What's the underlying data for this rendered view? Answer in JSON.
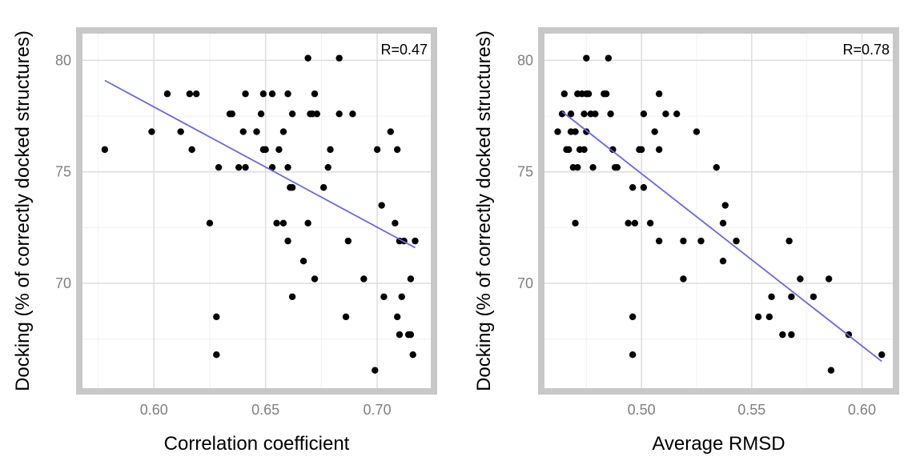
{
  "colors": {
    "frame": "#c8c8c8",
    "grid_major": "#dddddd",
    "grid_minor": "#f0f0f0",
    "points": "#000000",
    "fit_line": "#6666ee",
    "tick_text": "#7f7f7f"
  },
  "chart_data": [
    {
      "type": "scatter",
      "xlabel": "Correlation coefficient",
      "ylabel": "Docking (% of correctly docked structures)",
      "annotation": "R=0.47",
      "xlim": [
        0.568,
        0.724
      ],
      "ylim": [
        65.3,
        81.2
      ],
      "x_ticks": [
        0.6,
        0.65,
        0.7
      ],
      "x_tick_labels": [
        "0.60",
        "0.65",
        "0.70"
      ],
      "y_ticks": [
        70,
        75,
        80
      ],
      "y_tick_labels": [
        "70",
        "75",
        "80"
      ],
      "grid": true,
      "fit_line": {
        "x": [
          0.578,
          0.717
        ],
        "y": [
          79.1,
          71.6
        ]
      },
      "points": [
        {
          "x": 0.578,
          "y": 76.0
        },
        {
          "x": 0.599,
          "y": 76.8
        },
        {
          "x": 0.606,
          "y": 78.5
        },
        {
          "x": 0.612,
          "y": 76.8
        },
        {
          "x": 0.616,
          "y": 78.5
        },
        {
          "x": 0.617,
          "y": 76.0
        },
        {
          "x": 0.619,
          "y": 78.5
        },
        {
          "x": 0.625,
          "y": 72.7
        },
        {
          "x": 0.628,
          "y": 68.5
        },
        {
          "x": 0.628,
          "y": 66.8
        },
        {
          "x": 0.629,
          "y": 75.2
        },
        {
          "x": 0.634,
          "y": 77.6
        },
        {
          "x": 0.635,
          "y": 77.6
        },
        {
          "x": 0.638,
          "y": 75.2
        },
        {
          "x": 0.64,
          "y": 76.8
        },
        {
          "x": 0.641,
          "y": 78.5
        },
        {
          "x": 0.641,
          "y": 75.2
        },
        {
          "x": 0.646,
          "y": 76.8
        },
        {
          "x": 0.648,
          "y": 77.6
        },
        {
          "x": 0.649,
          "y": 76.0
        },
        {
          "x": 0.649,
          "y": 78.5
        },
        {
          "x": 0.65,
          "y": 76.0
        },
        {
          "x": 0.653,
          "y": 78.5
        },
        {
          "x": 0.653,
          "y": 75.2
        },
        {
          "x": 0.655,
          "y": 72.7
        },
        {
          "x": 0.656,
          "y": 76.0
        },
        {
          "x": 0.658,
          "y": 76.8
        },
        {
          "x": 0.658,
          "y": 72.7
        },
        {
          "x": 0.66,
          "y": 78.5
        },
        {
          "x": 0.66,
          "y": 75.2
        },
        {
          "x": 0.66,
          "y": 71.9
        },
        {
          "x": 0.661,
          "y": 74.3
        },
        {
          "x": 0.662,
          "y": 74.3
        },
        {
          "x": 0.662,
          "y": 77.6
        },
        {
          "x": 0.662,
          "y": 69.4
        },
        {
          "x": 0.667,
          "y": 71.0
        },
        {
          "x": 0.669,
          "y": 80.1
        },
        {
          "x": 0.669,
          "y": 72.7
        },
        {
          "x": 0.67,
          "y": 77.6
        },
        {
          "x": 0.671,
          "y": 77.6
        },
        {
          "x": 0.672,
          "y": 78.5
        },
        {
          "x": 0.672,
          "y": 70.2
        },
        {
          "x": 0.673,
          "y": 77.6
        },
        {
          "x": 0.676,
          "y": 74.3
        },
        {
          "x": 0.678,
          "y": 75.2
        },
        {
          "x": 0.679,
          "y": 76.0
        },
        {
          "x": 0.683,
          "y": 80.1
        },
        {
          "x": 0.683,
          "y": 77.6
        },
        {
          "x": 0.686,
          "y": 68.5
        },
        {
          "x": 0.687,
          "y": 71.9
        },
        {
          "x": 0.689,
          "y": 77.6
        },
        {
          "x": 0.694,
          "y": 70.2
        },
        {
          "x": 0.699,
          "y": 66.1
        },
        {
          "x": 0.7,
          "y": 76.0
        },
        {
          "x": 0.702,
          "y": 73.5
        },
        {
          "x": 0.703,
          "y": 69.4
        },
        {
          "x": 0.706,
          "y": 76.8
        },
        {
          "x": 0.708,
          "y": 72.7
        },
        {
          "x": 0.709,
          "y": 76.0
        },
        {
          "x": 0.709,
          "y": 68.5
        },
        {
          "x": 0.71,
          "y": 71.9
        },
        {
          "x": 0.71,
          "y": 67.7
        },
        {
          "x": 0.711,
          "y": 69.4
        },
        {
          "x": 0.712,
          "y": 71.9
        },
        {
          "x": 0.714,
          "y": 67.7
        },
        {
          "x": 0.715,
          "y": 70.2
        },
        {
          "x": 0.715,
          "y": 67.7
        },
        {
          "x": 0.716,
          "y": 66.8
        },
        {
          "x": 0.717,
          "y": 71.9
        }
      ]
    },
    {
      "type": "scatter",
      "xlabel": "Average RMSD",
      "ylabel": "Docking (% of correctly docked structures)",
      "annotation": "R=0.78",
      "xlim": [
        0.456,
        0.614
      ],
      "ylim": [
        65.3,
        81.2
      ],
      "x_ticks": [
        0.5,
        0.55,
        0.6
      ],
      "x_tick_labels": [
        "0.50",
        "0.55",
        "0.60"
      ],
      "y_ticks": [
        70,
        75,
        80
      ],
      "y_tick_labels": [
        "70",
        "75",
        "80"
      ],
      "grid": true,
      "fit_line": {
        "x": [
          0.464,
          0.609
        ],
        "y": [
          77.7,
          66.5
        ]
      },
      "points": [
        {
          "x": 0.462,
          "y": 76.8
        },
        {
          "x": 0.464,
          "y": 77.6
        },
        {
          "x": 0.465,
          "y": 78.5
        },
        {
          "x": 0.466,
          "y": 76.0
        },
        {
          "x": 0.467,
          "y": 76.0
        },
        {
          "x": 0.468,
          "y": 77.6
        },
        {
          "x": 0.468,
          "y": 76.8
        },
        {
          "x": 0.469,
          "y": 75.2
        },
        {
          "x": 0.47,
          "y": 72.7
        },
        {
          "x": 0.47,
          "y": 76.8
        },
        {
          "x": 0.471,
          "y": 75.2
        },
        {
          "x": 0.471,
          "y": 78.5
        },
        {
          "x": 0.472,
          "y": 76.0
        },
        {
          "x": 0.473,
          "y": 78.5
        },
        {
          "x": 0.474,
          "y": 77.6
        },
        {
          "x": 0.474,
          "y": 76.0
        },
        {
          "x": 0.475,
          "y": 80.1
        },
        {
          "x": 0.475,
          "y": 78.5
        },
        {
          "x": 0.475,
          "y": 76.8
        },
        {
          "x": 0.476,
          "y": 78.5
        },
        {
          "x": 0.477,
          "y": 77.6
        },
        {
          "x": 0.478,
          "y": 75.2
        },
        {
          "x": 0.479,
          "y": 77.6
        },
        {
          "x": 0.483,
          "y": 78.5
        },
        {
          "x": 0.484,
          "y": 78.5
        },
        {
          "x": 0.485,
          "y": 80.1
        },
        {
          "x": 0.486,
          "y": 77.6
        },
        {
          "x": 0.487,
          "y": 76.0
        },
        {
          "x": 0.488,
          "y": 75.2
        },
        {
          "x": 0.489,
          "y": 75.2
        },
        {
          "x": 0.494,
          "y": 72.7
        },
        {
          "x": 0.496,
          "y": 74.3
        },
        {
          "x": 0.496,
          "y": 68.5
        },
        {
          "x": 0.496,
          "y": 66.8
        },
        {
          "x": 0.497,
          "y": 72.7
        },
        {
          "x": 0.499,
          "y": 76.0
        },
        {
          "x": 0.5,
          "y": 76.0
        },
        {
          "x": 0.501,
          "y": 74.3
        },
        {
          "x": 0.501,
          "y": 77.6
        },
        {
          "x": 0.504,
          "y": 72.7
        },
        {
          "x": 0.506,
          "y": 76.8
        },
        {
          "x": 0.508,
          "y": 78.5
        },
        {
          "x": 0.508,
          "y": 76.0
        },
        {
          "x": 0.508,
          "y": 71.9
        },
        {
          "x": 0.511,
          "y": 77.6
        },
        {
          "x": 0.516,
          "y": 77.6
        },
        {
          "x": 0.519,
          "y": 71.9
        },
        {
          "x": 0.519,
          "y": 70.2
        },
        {
          "x": 0.525,
          "y": 76.8
        },
        {
          "x": 0.527,
          "y": 71.9
        },
        {
          "x": 0.534,
          "y": 75.2
        },
        {
          "x": 0.537,
          "y": 72.7
        },
        {
          "x": 0.537,
          "y": 71.0
        },
        {
          "x": 0.538,
          "y": 73.5
        },
        {
          "x": 0.543,
          "y": 71.9
        },
        {
          "x": 0.553,
          "y": 68.5
        },
        {
          "x": 0.558,
          "y": 68.5
        },
        {
          "x": 0.559,
          "y": 69.4
        },
        {
          "x": 0.564,
          "y": 67.7
        },
        {
          "x": 0.567,
          "y": 71.9
        },
        {
          "x": 0.568,
          "y": 69.4
        },
        {
          "x": 0.568,
          "y": 67.7
        },
        {
          "x": 0.572,
          "y": 70.2
        },
        {
          "x": 0.578,
          "y": 69.4
        },
        {
          "x": 0.585,
          "y": 70.2
        },
        {
          "x": 0.586,
          "y": 66.1
        },
        {
          "x": 0.594,
          "y": 67.7
        },
        {
          "x": 0.609,
          "y": 66.8
        }
      ]
    }
  ]
}
